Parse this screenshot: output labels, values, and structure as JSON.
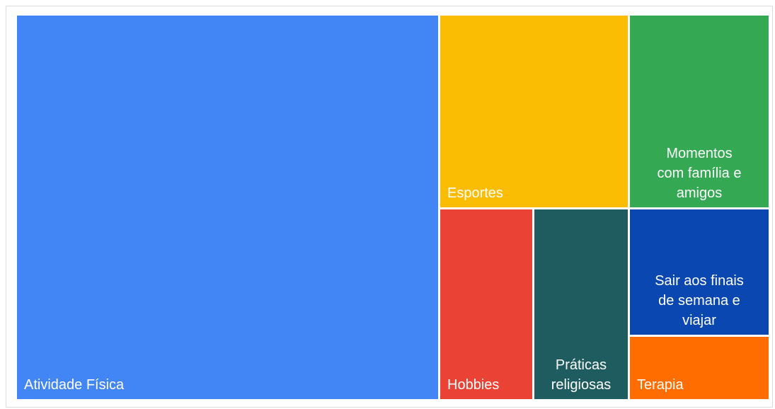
{
  "chart_data": {
    "type": "treemap",
    "items": [
      {
        "label": "Atividade Física",
        "value": 43,
        "color": "#4285F4"
      },
      {
        "label": "Esportes",
        "value": 11,
        "color": "#FBBC04"
      },
      {
        "label": "Momentos com família e amigos",
        "value": 10,
        "color": "#34A853"
      },
      {
        "label": "Hobbies",
        "value": 7,
        "color": "#EA4335"
      },
      {
        "label": "Práticas religiosas",
        "value": 7,
        "color": "#1E5C5F"
      },
      {
        "label": "Sair aos finais de semana e viajar",
        "value": 6,
        "color": "#0B47B0"
      },
      {
        "label": "Terapia",
        "value": 3,
        "color": "#FF6D01"
      }
    ]
  }
}
